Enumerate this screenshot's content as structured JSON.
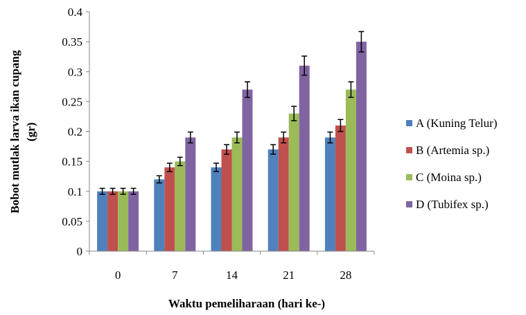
{
  "chart_data": {
    "type": "bar",
    "title": "",
    "xlabel": "Waktu pemeliharaan (hari ke-)",
    "ylabel_line1": "Bobot mutlak larva ikan cupang",
    "ylabel_line2": "(gr)",
    "ylim": [
      0,
      0.4
    ],
    "yticks": [
      "0",
      "0.05",
      "0.1",
      "0.15",
      "0.2",
      "0.25",
      "0.3",
      "0.35",
      "0.4"
    ],
    "ytick_values": [
      0,
      0.05,
      0.1,
      0.15,
      0.2,
      0.25,
      0.3,
      0.35,
      0.4
    ],
    "categories": [
      "0",
      "7",
      "14",
      "21",
      "28"
    ],
    "grid": false,
    "legend_position": "right",
    "series": [
      {
        "name": "A (Kuning Telur)",
        "color": "#4F81BD",
        "values": [
          0.1,
          0.12,
          0.14,
          0.17,
          0.19
        ],
        "errors": [
          0.005,
          0.006,
          0.007,
          0.008,
          0.009
        ]
      },
      {
        "name": "B (Artemia sp.)",
        "color": "#C0504D",
        "values": [
          0.1,
          0.14,
          0.17,
          0.19,
          0.21
        ],
        "errors": [
          0.005,
          0.007,
          0.008,
          0.009,
          0.01
        ]
      },
      {
        "name": "C (Moina sp.)",
        "color": "#9BBB59",
        "values": [
          0.1,
          0.15,
          0.19,
          0.23,
          0.27
        ],
        "errors": [
          0.005,
          0.007,
          0.009,
          0.012,
          0.013
        ]
      },
      {
        "name": "D (Tubifex sp.)",
        "color": "#8064A2",
        "values": [
          0.1,
          0.19,
          0.27,
          0.31,
          0.35
        ],
        "errors": [
          0.005,
          0.009,
          0.013,
          0.016,
          0.017
        ]
      }
    ]
  }
}
